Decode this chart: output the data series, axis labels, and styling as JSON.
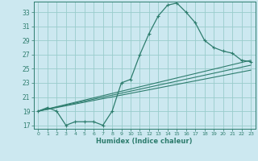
{
  "xlabel": "Humidex (Indice chaleur)",
  "bg_color": "#cce8f0",
  "grid_color": "#99cccc",
  "line_color": "#2e7d6e",
  "xlim": [
    -0.5,
    23.5
  ],
  "ylim": [
    16.5,
    34.5
  ],
  "xticks": [
    0,
    1,
    2,
    3,
    4,
    5,
    6,
    7,
    8,
    9,
    10,
    11,
    12,
    13,
    14,
    15,
    16,
    17,
    18,
    19,
    20,
    21,
    22,
    23
  ],
  "yticks": [
    17,
    19,
    21,
    23,
    25,
    27,
    29,
    31,
    33
  ],
  "line1_x": [
    0,
    1,
    2,
    3,
    4,
    5,
    6,
    7,
    8,
    9,
    10,
    11,
    12,
    13,
    14,
    15,
    16,
    17,
    18,
    19,
    20,
    21,
    22,
    23
  ],
  "line1_y": [
    19,
    19.5,
    19,
    17,
    17.5,
    17.5,
    17.5,
    17,
    19,
    23,
    23.5,
    27,
    30,
    32.5,
    34,
    34.3,
    33,
    31.5,
    29,
    28,
    27.5,
    27.2,
    26.2,
    26
  ],
  "line2_x": [
    0,
    23
  ],
  "line2_y": [
    19,
    26.2
  ],
  "line3_x": [
    0,
    23
  ],
  "line3_y": [
    19,
    25.5
  ],
  "line4_x": [
    0,
    23
  ],
  "line4_y": [
    19,
    24.8
  ],
  "marker": "+"
}
